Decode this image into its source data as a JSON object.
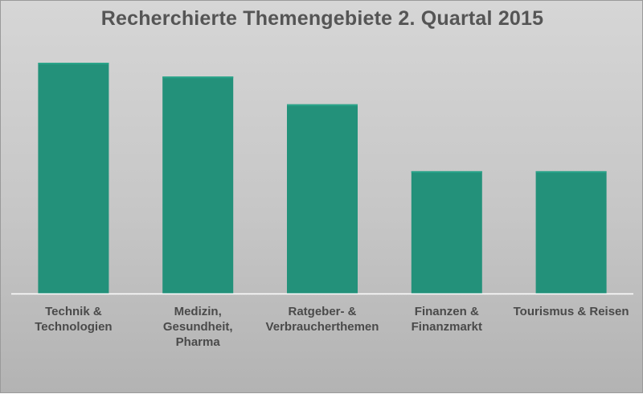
{
  "chart_data": {
    "type": "bar",
    "title": "Recherchierte Themengebiete 2. Quartal 2015",
    "categories": [
      "Technik &\nTechnologien",
      "Medizin,\nGesundheit,\nPharma",
      "Ratgeber- &\nVerbraucherthemen",
      "Finanzen &\nFinanzmarkt",
      "Tourismus & Reisen"
    ],
    "values": [
      100,
      94,
      82,
      53,
      53
    ],
    "ylim": [
      0,
      100
    ],
    "colors": {
      "bar": "#23917a",
      "background": "#cccccc",
      "axis": "#ffffff"
    },
    "grid": false,
    "legend": "none"
  }
}
